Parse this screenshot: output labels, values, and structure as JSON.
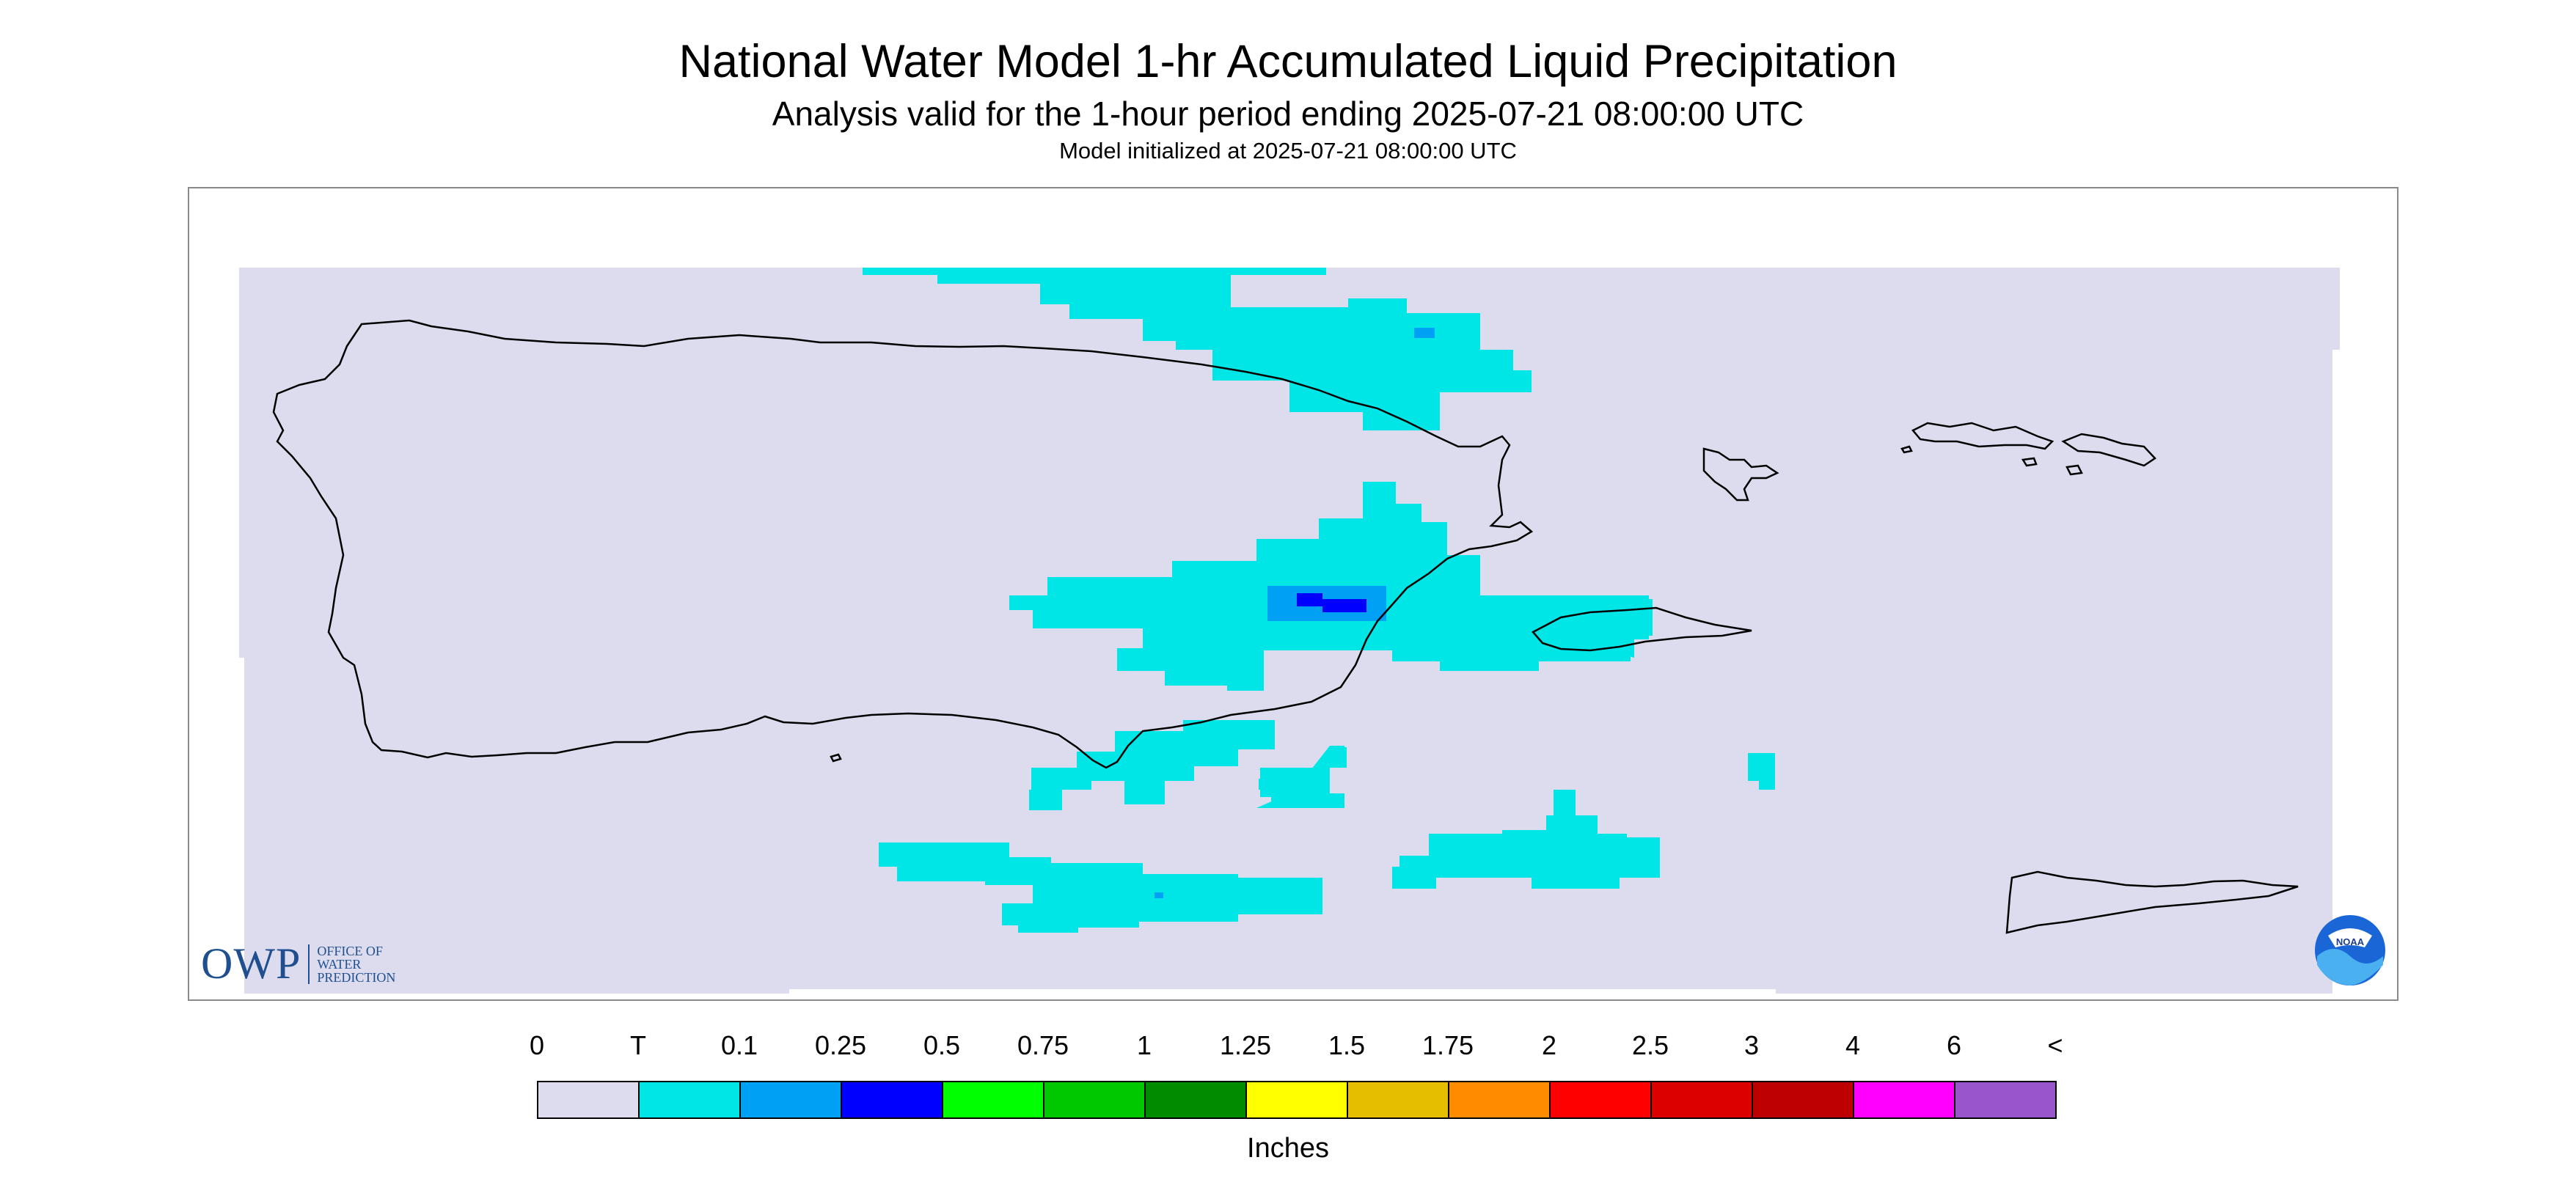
{
  "title": "National Water Model 1-hr Accumulated Liquid Precipitation",
  "subtitle": "Analysis valid for the 1-hour period ending 2025-07-21 08:00:00 UTC",
  "init_text": "Model initialized at 2025-07-21 08:00:00 UTC",
  "logo": {
    "owp_mark": "OWP",
    "owp_line1": "OFFICE OF",
    "owp_line2": "WATER",
    "owp_line3": "PREDICTION",
    "noaa": "NOAA"
  },
  "legend": {
    "units": "Inches",
    "labels": [
      "0",
      "T",
      "0.1",
      "0.25",
      "0.5",
      "0.75",
      "1",
      "1.25",
      "1.5",
      "1.75",
      "2",
      "2.5",
      "3",
      "4",
      "6",
      "<"
    ],
    "colors": [
      "#dcdcee",
      "#00e5e5",
      "#00a0f5",
      "#0000ff",
      "#00ff00",
      "#00c800",
      "#008c00",
      "#ffff00",
      "#e6be00",
      "#ff8c00",
      "#ff0000",
      "#dc0000",
      "#be0000",
      "#ff00ff",
      "#9955cc"
    ]
  },
  "map_colors": {
    "background": "#dcdcee",
    "trace": "#00e5e5",
    "light": "#00a0f5",
    "moderate": "#0000ff",
    "coast": "#000000"
  }
}
